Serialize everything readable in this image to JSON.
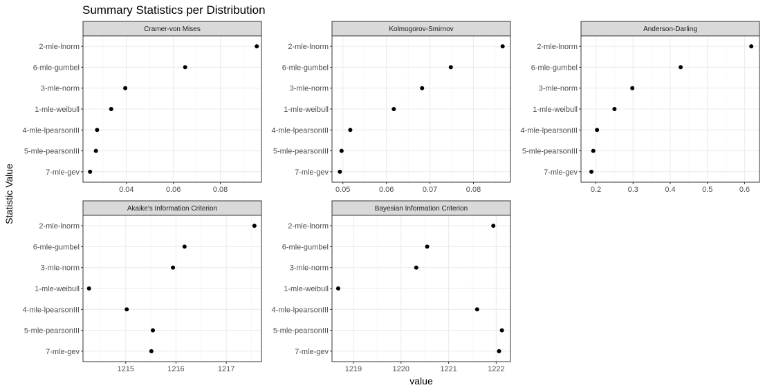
{
  "chart_data": {
    "type": "scatter",
    "title": "Summary Statistics per Distribution",
    "xlabel": "value",
    "ylabel": "Statistic Value",
    "grid": true,
    "categories": [
      "2-mle-lnorm",
      "6-mle-gumbel",
      "3-mle-norm",
      "1-mle-weibull",
      "4-mle-lpearsonIII",
      "5-mle-pearsonIII",
      "7-mle-gev"
    ],
    "panels": [
      {
        "name": "Cramer-von Mises",
        "xlim": [
          0.0215,
          0.0975
        ],
        "ticks": [
          0.04,
          0.06,
          0.08
        ],
        "tick_labels": [
          "0.04",
          "0.06",
          "0.08"
        ],
        "values": [
          0.0955,
          0.065,
          0.0395,
          0.0335,
          0.0275,
          0.027,
          0.0245
        ]
      },
      {
        "name": "Kolmogorov-Smirnov",
        "xlim": [
          0.0475,
          0.0885
        ],
        "ticks": [
          0.05,
          0.06,
          0.07,
          0.08
        ],
        "tick_labels": [
          "0.05",
          "0.06",
          "0.07",
          "0.08"
        ],
        "values": [
          0.0867,
          0.0748,
          0.0682,
          0.0617,
          0.0517,
          0.0497,
          0.0493
        ]
      },
      {
        "name": "Anderson-Darling",
        "xlim": [
          0.16,
          0.64
        ],
        "ticks": [
          0.2,
          0.3,
          0.4,
          0.5,
          0.6
        ],
        "tick_labels": [
          "0.2",
          "0.3",
          "0.4",
          "0.5",
          "0.6"
        ],
        "values": [
          0.618,
          0.428,
          0.298,
          0.25,
          0.203,
          0.193,
          0.188
        ]
      },
      {
        "name": "Akaike's Information Criterion",
        "xlim": [
          1214.15,
          1217.7
        ],
        "ticks": [
          1215,
          1216,
          1217
        ],
        "tick_labels": [
          "1215",
          "1216",
          "1217"
        ],
        "values": [
          1217.56,
          1216.17,
          1215.94,
          1214.27,
          1215.02,
          1215.54,
          1215.51
        ]
      },
      {
        "name": "Bayesian Information Criterion",
        "xlim": [
          1218.55,
          1222.3
        ],
        "ticks": [
          1219,
          1220,
          1221,
          1222
        ],
        "tick_labels": [
          "1219",
          "1220",
          "1221",
          "1222"
        ],
        "values": [
          1221.94,
          1220.55,
          1220.32,
          1218.68,
          1221.6,
          1222.12,
          1222.06
        ]
      }
    ]
  }
}
